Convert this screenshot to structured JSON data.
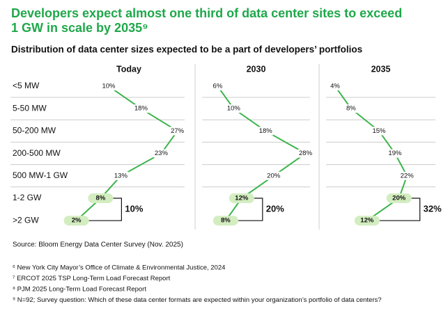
{
  "chart_data": {
    "type": "line",
    "title": "Developers expect almost one third of data center sites to exceed",
    "title_line2": "1 GW in scale by 2035⁹",
    "subtitle": "Distribution of data center sizes expected to be a part of developers’ portfolios",
    "categories": [
      "<5 MW",
      "5-50 MW",
      "50-200 MW",
      "200-500 MW",
      "500 MW-1 GW",
      "1-2 GW",
      ">2 GW"
    ],
    "xlim": [
      0,
      30
    ],
    "series": [
      {
        "name": "Today",
        "color": "#3cb44b",
        "values": [
          10,
          18,
          27,
          23,
          13,
          8,
          2
        ],
        "value_labels": [
          "10%",
          "18%",
          "27%",
          "23%",
          "13%",
          "8%",
          "2%"
        ],
        "total": {
          "value": 10,
          "label": "10%"
        }
      },
      {
        "name": "2030",
        "color": "#3cb44b",
        "values": [
          6,
          10,
          18,
          28,
          20,
          12,
          8
        ],
        "value_labels": [
          "6%",
          "10%",
          "18%",
          "28%",
          "20%",
          "12%",
          "8%"
        ],
        "total": {
          "value": 20,
          "label": "20%"
        }
      },
      {
        "name": "2035",
        "color": "#3cb44b",
        "values": [
          4,
          8,
          15,
          19,
          22,
          20,
          12
        ],
        "value_labels": [
          "4%",
          "8%",
          "15%",
          "19%",
          "22%",
          "20%",
          "12%"
        ],
        "total": {
          "value": 32,
          "label": "32%"
        }
      }
    ]
  },
  "source": "Source: Bloom Energy Data Center Survey (Nov. 2025)",
  "footnotes": [
    "⁶ New York City Mayor’s Office of Climate & Environmental Justice, 2024",
    "⁷ ERCOT 2025 TSP Long-Term Load Forecast Report",
    "⁸ PJM 2025 Long-Term Load Forecast Report",
    "⁹ N=92; Survey question: Which of these data center formats are expected within your organization’s portfolio of data centers?"
  ]
}
